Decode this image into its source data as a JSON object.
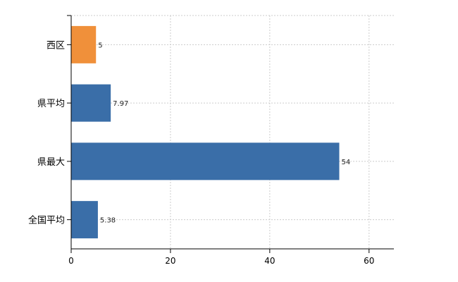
{
  "chart_data": {
    "type": "bar",
    "orientation": "horizontal",
    "categories": [
      "西区",
      "県平均",
      "県最大",
      "全国平均"
    ],
    "values": [
      5,
      7.97,
      54,
      5.38
    ],
    "value_labels": [
      "5",
      "7.97",
      "54",
      "5.38"
    ],
    "bar_colors": [
      "#f0903a",
      "#3a6ea8",
      "#3a6ea8",
      "#3a6ea8"
    ],
    "xlim": [
      0,
      65
    ],
    "xticks": [
      0,
      20,
      40,
      60
    ],
    "xtick_labels": [
      "0",
      "20",
      "40",
      "60"
    ],
    "grid": true,
    "title": "",
    "xlabel": "",
    "ylabel": ""
  }
}
